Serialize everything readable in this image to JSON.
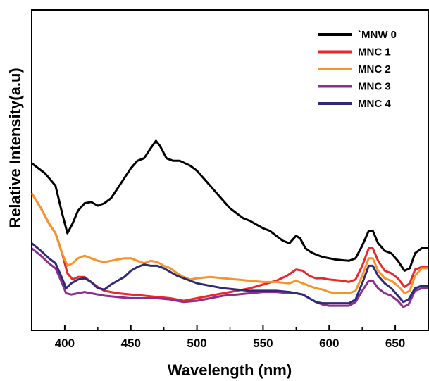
{
  "chart_data": {
    "type": "line",
    "xlabel": "Wavelength (nm)",
    "ylabel": "Relative Intensity(a.u)",
    "xlim": [
      375,
      675
    ],
    "ylim": [
      0,
      100
    ],
    "x_ticks": [
      400,
      450,
      500,
      550,
      600,
      650
    ],
    "y_ticks_labeled": false,
    "legend_position": "top-right",
    "series": [
      {
        "name": "`MNW 0",
        "color": "#000000",
        "points": [
          [
            375,
            64
          ],
          [
            385,
            60
          ],
          [
            393,
            55
          ],
          [
            398,
            44
          ],
          [
            402,
            36
          ],
          [
            406,
            40
          ],
          [
            410,
            45
          ],
          [
            415,
            48
          ],
          [
            420,
            48.5
          ],
          [
            425,
            47
          ],
          [
            430,
            48
          ],
          [
            435,
            50
          ],
          [
            440,
            54
          ],
          [
            445,
            58
          ],
          [
            450,
            62
          ],
          [
            455,
            65
          ],
          [
            460,
            66
          ],
          [
            465,
            70
          ],
          [
            469,
            73
          ],
          [
            472,
            71
          ],
          [
            477,
            66
          ],
          [
            482,
            65
          ],
          [
            487,
            65
          ],
          [
            495,
            63
          ],
          [
            500,
            61
          ],
          [
            505,
            58
          ],
          [
            510,
            55
          ],
          [
            515,
            52
          ],
          [
            520,
            49
          ],
          [
            525,
            46
          ],
          [
            530,
            44
          ],
          [
            535,
            42
          ],
          [
            540,
            41
          ],
          [
            545,
            39.5
          ],
          [
            550,
            38
          ],
          [
            555,
            37
          ],
          [
            560,
            35
          ],
          [
            565,
            33
          ],
          [
            570,
            32
          ],
          [
            575,
            35
          ],
          [
            578,
            34
          ],
          [
            582,
            30
          ],
          [
            586,
            28.5
          ],
          [
            590,
            27.5
          ],
          [
            595,
            26.5
          ],
          [
            600,
            26
          ],
          [
            605,
            25.5
          ],
          [
            610,
            25.2
          ],
          [
            615,
            25
          ],
          [
            620,
            26
          ],
          [
            625,
            31
          ],
          [
            630,
            37
          ],
          [
            633,
            37
          ],
          [
            637,
            32
          ],
          [
            642,
            29
          ],
          [
            647,
            28
          ],
          [
            652,
            25
          ],
          [
            657,
            21
          ],
          [
            661,
            22
          ],
          [
            665,
            28
          ],
          [
            670,
            30
          ],
          [
            675,
            30
          ]
        ]
      },
      {
        "name": "MNC 1",
        "color": "#e8282b",
        "points": [
          [
            375,
            52
          ],
          [
            382,
            46
          ],
          [
            388,
            40
          ],
          [
            393,
            36
          ],
          [
            398,
            28
          ],
          [
            402,
            20
          ],
          [
            406,
            17.5
          ],
          [
            410,
            18.5
          ],
          [
            415,
            18.5
          ],
          [
            420,
            16.5
          ],
          [
            425,
            14.5
          ],
          [
            430,
            13
          ],
          [
            440,
            12
          ],
          [
            450,
            11.5
          ],
          [
            460,
            11
          ],
          [
            470,
            10.5
          ],
          [
            480,
            10
          ],
          [
            485,
            9.5
          ],
          [
            490,
            9
          ],
          [
            500,
            10
          ],
          [
            510,
            11
          ],
          [
            520,
            12
          ],
          [
            530,
            13
          ],
          [
            540,
            14
          ],
          [
            550,
            15.5
          ],
          [
            560,
            17
          ],
          [
            568,
            19
          ],
          [
            575,
            21.5
          ],
          [
            580,
            21
          ],
          [
            585,
            19
          ],
          [
            590,
            18
          ],
          [
            595,
            18
          ],
          [
            600,
            17.5
          ],
          [
            610,
            17
          ],
          [
            615,
            16.5
          ],
          [
            620,
            17.5
          ],
          [
            625,
            23
          ],
          [
            630,
            30
          ],
          [
            633,
            30
          ],
          [
            637,
            25
          ],
          [
            642,
            21
          ],
          [
            647,
            20
          ],
          [
            652,
            18
          ],
          [
            657,
            14.5
          ],
          [
            661,
            16
          ],
          [
            665,
            21.5
          ],
          [
            670,
            22.5
          ],
          [
            675,
            22.5
          ]
        ]
      },
      {
        "name": "MNC 2",
        "color": "#f6942a",
        "points": [
          [
            375,
            52
          ],
          [
            382,
            46
          ],
          [
            388,
            40
          ],
          [
            393,
            36
          ],
          [
            398,
            28
          ],
          [
            402,
            23
          ],
          [
            406,
            24
          ],
          [
            410,
            26
          ],
          [
            415,
            27
          ],
          [
            420,
            26
          ],
          [
            425,
            25
          ],
          [
            430,
            24.5
          ],
          [
            435,
            25
          ],
          [
            440,
            25.5
          ],
          [
            445,
            26
          ],
          [
            450,
            26
          ],
          [
            455,
            25
          ],
          [
            460,
            24
          ],
          [
            465,
            25
          ],
          [
            470,
            24.5
          ],
          [
            475,
            23
          ],
          [
            480,
            22
          ],
          [
            485,
            20
          ],
          [
            490,
            18.5
          ],
          [
            495,
            17.5
          ],
          [
            500,
            18
          ],
          [
            510,
            18.5
          ],
          [
            520,
            18
          ],
          [
            530,
            17.5
          ],
          [
            540,
            17
          ],
          [
            550,
            16.5
          ],
          [
            560,
            16.5
          ],
          [
            570,
            16
          ],
          [
            575,
            17
          ],
          [
            580,
            16
          ],
          [
            585,
            15
          ],
          [
            590,
            14
          ],
          [
            595,
            13.5
          ],
          [
            600,
            12.5
          ],
          [
            605,
            12
          ],
          [
            610,
            12
          ],
          [
            615,
            12
          ],
          [
            620,
            13
          ],
          [
            625,
            19
          ],
          [
            630,
            26
          ],
          [
            633,
            26
          ],
          [
            637,
            21
          ],
          [
            642,
            18
          ],
          [
            647,
            17
          ],
          [
            652,
            15
          ],
          [
            657,
            12
          ],
          [
            661,
            13
          ],
          [
            665,
            19
          ],
          [
            670,
            22
          ],
          [
            675,
            22
          ]
        ]
      },
      {
        "name": "MNC 3",
        "color": "#8c2f91",
        "points": [
          [
            375,
            30
          ],
          [
            382,
            27
          ],
          [
            388,
            24
          ],
          [
            393,
            22
          ],
          [
            398,
            16
          ],
          [
            401,
            12
          ],
          [
            405,
            11.5
          ],
          [
            410,
            12
          ],
          [
            415,
            12.5
          ],
          [
            420,
            12
          ],
          [
            425,
            11.5
          ],
          [
            430,
            11
          ],
          [
            440,
            10.5
          ],
          [
            450,
            10
          ],
          [
            460,
            10
          ],
          [
            470,
            10
          ],
          [
            480,
            9.5
          ],
          [
            485,
            9
          ],
          [
            490,
            8.5
          ],
          [
            500,
            9
          ],
          [
            510,
            10
          ],
          [
            520,
            11
          ],
          [
            530,
            11.5
          ],
          [
            540,
            12
          ],
          [
            550,
            12.5
          ],
          [
            560,
            12.5
          ],
          [
            570,
            12
          ],
          [
            575,
            12
          ],
          [
            580,
            11.5
          ],
          [
            585,
            10
          ],
          [
            590,
            8.5
          ],
          [
            595,
            7.5
          ],
          [
            600,
            7
          ],
          [
            610,
            7
          ],
          [
            615,
            7
          ],
          [
            620,
            8.5
          ],
          [
            625,
            13
          ],
          [
            630,
            17
          ],
          [
            633,
            17
          ],
          [
            637,
            14
          ],
          [
            642,
            12
          ],
          [
            647,
            11
          ],
          [
            652,
            9
          ],
          [
            656,
            6.5
          ],
          [
            660,
            7.5
          ],
          [
            665,
            13
          ],
          [
            670,
            14
          ],
          [
            675,
            14
          ]
        ]
      },
      {
        "name": "MNC 4",
        "color": "#2e2a78",
        "points": [
          [
            375,
            32
          ],
          [
            382,
            29
          ],
          [
            388,
            26
          ],
          [
            393,
            24
          ],
          [
            398,
            18
          ],
          [
            401,
            14
          ],
          [
            405,
            16
          ],
          [
            410,
            17.5
          ],
          [
            415,
            18
          ],
          [
            420,
            16.5
          ],
          [
            425,
            14
          ],
          [
            430,
            13.5
          ],
          [
            435,
            15.5
          ],
          [
            440,
            17
          ],
          [
            445,
            18.5
          ],
          [
            450,
            21
          ],
          [
            455,
            22.5
          ],
          [
            460,
            23.5
          ],
          [
            465,
            23
          ],
          [
            470,
            23
          ],
          [
            475,
            22
          ],
          [
            480,
            20.5
          ],
          [
            485,
            19
          ],
          [
            490,
            18
          ],
          [
            495,
            17
          ],
          [
            500,
            16
          ],
          [
            510,
            15
          ],
          [
            520,
            14
          ],
          [
            530,
            13.5
          ],
          [
            540,
            13
          ],
          [
            550,
            13
          ],
          [
            560,
            13
          ],
          [
            570,
            12.5
          ],
          [
            580,
            11.5
          ],
          [
            585,
            10
          ],
          [
            590,
            8.5
          ],
          [
            595,
            8
          ],
          [
            600,
            8
          ],
          [
            610,
            8
          ],
          [
            615,
            8
          ],
          [
            620,
            9.5
          ],
          [
            625,
            16
          ],
          [
            630,
            23
          ],
          [
            633,
            23
          ],
          [
            637,
            19
          ],
          [
            642,
            16
          ],
          [
            647,
            14
          ],
          [
            652,
            11
          ],
          [
            656,
            8.5
          ],
          [
            660,
            9.5
          ],
          [
            665,
            14
          ],
          [
            670,
            15
          ],
          [
            675,
            15
          ]
        ]
      }
    ]
  }
}
